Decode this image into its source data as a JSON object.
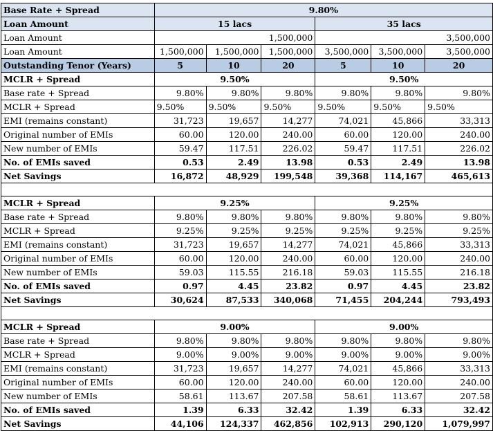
{
  "header": {
    "base_rate_label": "Base Rate + Spread",
    "base_rate_value": "9.80%",
    "loan_amount_label": "Loan Amount",
    "group1": "15 lacs",
    "group2": "35 lacs",
    "loan_amount_1": "1,500,000",
    "loan_amount_2": "3,500,000",
    "loan_amount_row": [
      "1,500,000",
      "1,500,000",
      "1,500,000",
      "3,500,000",
      "3,500,000",
      "3,500,000"
    ],
    "tenor_label": "Outstanding Tenor (Years)",
    "tenors": [
      "5",
      "10",
      "20",
      "5",
      "10",
      "20"
    ]
  },
  "sections": [
    {
      "title": "MCLR + Spread",
      "rate_left": "9.50%",
      "rate_right": "9.50%",
      "rows": [
        {
          "label": "Base rate + Spread",
          "values": [
            "9.80%",
            "9.80%",
            "9.80%",
            "9.80%",
            "9.80%",
            "9.80%"
          ]
        },
        {
          "label": "MCLR + Spread",
          "values": [
            "9.50%",
            "9.50%",
            "9.50%",
            "9.50%",
            "9.50%",
            "9.50%"
          ]
        },
        {
          "label": "EMI (remains constant)",
          "values": [
            "31,723",
            "19,657",
            "14,277",
            "74,021",
            "45,866",
            "33,313"
          ]
        },
        {
          "label": "Original number of EMIs",
          "values": [
            "60.00",
            "120.00",
            "240.00",
            "60.00",
            "120.00",
            "240.00"
          ]
        },
        {
          "label": "New number of EMIs",
          "values": [
            "59.47",
            "117.51",
            "226.02",
            "59.47",
            "117.51",
            "226.02"
          ]
        },
        {
          "label": "No. of EMIs saved",
          "values": [
            "0.53",
            "2.49",
            "13.98",
            "0.53",
            "2.49",
            "13.98"
          ]
        },
        {
          "label": "Net Savings",
          "values": [
            "16,872",
            "48,929",
            "199,548",
            "39,368",
            "114,167",
            "465,613"
          ]
        }
      ]
    },
    {
      "title": "MCLR + Spread",
      "rate_left": "9.25%",
      "rate_right": "9.25%",
      "rows": [
        {
          "label": "Base rate + Spread",
          "values": [
            "9.80%",
            "9.80%",
            "9.80%",
            "9.80%",
            "9.80%",
            "9.80%"
          ]
        },
        {
          "label": "MCLR + Spread",
          "values": [
            "9.25%",
            "9.25%",
            "9.25%",
            "9.25%",
            "9.25%",
            "9.25%"
          ]
        },
        {
          "label": "EMI (remains constant)",
          "values": [
            "31,723",
            "19,657",
            "14,277",
            "74,021",
            "45,866",
            "33,313"
          ]
        },
        {
          "label": "Original number of EMIs",
          "values": [
            "60.00",
            "120.00",
            "240.00",
            "60.00",
            "120.00",
            "240.00"
          ]
        },
        {
          "label": "New number of EMIs",
          "values": [
            "59.03",
            "115.55",
            "216.18",
            "59.03",
            "115.55",
            "216.18"
          ]
        },
        {
          "label": "No. of EMIs saved",
          "values": [
            "0.97",
            "4.45",
            "23.82",
            "0.97",
            "4.45",
            "23.82"
          ]
        },
        {
          "label": "Net Savings",
          "values": [
            "30,624",
            "87,533",
            "340,068",
            "71,455",
            "204,244",
            "793,493"
          ]
        }
      ]
    },
    {
      "title": "MCLR + Spread",
      "rate_left": "9.00%",
      "rate_right": "9.00%",
      "rows": [
        {
          "label": "Base rate + Spread",
          "values": [
            "9.80%",
            "9.80%",
            "9.80%",
            "9.80%",
            "9.80%",
            "9.80%"
          ]
        },
        {
          "label": "MCLR + Spread",
          "values": [
            "9.00%",
            "9.00%",
            "9.00%",
            "9.00%",
            "9.00%",
            "9.00%"
          ]
        },
        {
          "label": "EMI (remains constant)",
          "values": [
            "31,723",
            "19,657",
            "14,277",
            "74,021",
            "45,866",
            "33,313"
          ]
        },
        {
          "label": "Original number of EMIs",
          "values": [
            "60.00",
            "120.00",
            "240.00",
            "60.00",
            "120.00",
            "240.00"
          ]
        },
        {
          "label": "New number of EMIs",
          "values": [
            "58.61",
            "113.67",
            "207.58",
            "58.61",
            "113.67",
            "207.58"
          ]
        },
        {
          "label": "No. of EMIs saved",
          "values": [
            "1.39",
            "6.33",
            "32.42",
            "1.39",
            "6.33",
            "32.42"
          ]
        },
        {
          "label": "Net Savings",
          "values": [
            "44,106",
            "124,337",
            "462,856",
            "102,913",
            "290,120",
            "1,079,997"
          ]
        }
      ]
    }
  ]
}
